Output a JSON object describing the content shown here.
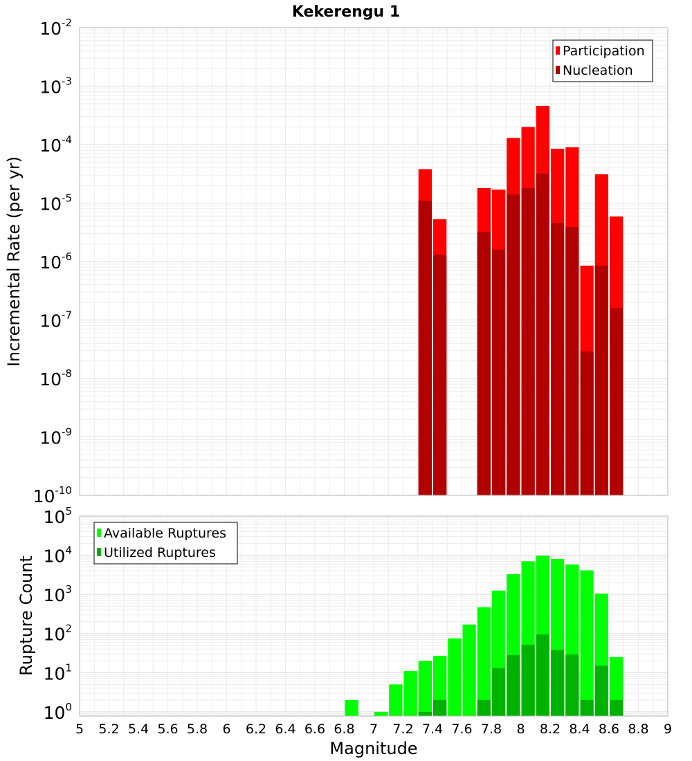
{
  "chart_data": [
    {
      "type": "bar",
      "title": "Kekerengu 1",
      "xlabel": "",
      "ylabel": "Incremental Rate (per yr)",
      "yscale": "log",
      "ylim": [
        1e-10,
        0.01
      ],
      "xlim": [
        5,
        9
      ],
      "bar_width": 0.1,
      "grid": true,
      "legend_position": "top-right",
      "y_tick_labels": [
        {
          "base": "10",
          "exp": "-2",
          "value": 0.01
        },
        {
          "base": "10",
          "exp": "-3",
          "value": 0.001
        },
        {
          "base": "10",
          "exp": "-4",
          "value": 0.0001
        },
        {
          "base": "10",
          "exp": "-5",
          "value": 1e-05
        },
        {
          "base": "10",
          "exp": "-6",
          "value": 1e-06
        },
        {
          "base": "10",
          "exp": "-7",
          "value": 1e-07
        },
        {
          "base": "10",
          "exp": "-8",
          "value": 1e-08
        },
        {
          "base": "10",
          "exp": "-9",
          "value": 1e-09
        },
        {
          "base": "10",
          "exp": "-10",
          "value": 1e-10
        }
      ],
      "series": [
        {
          "name": "Participation",
          "color": "#ff0000",
          "points": [
            {
              "x": 7.35,
              "y": 3.8e-05
            },
            {
              "x": 7.45,
              "y": 5.3e-06
            },
            {
              "x": 7.75,
              "y": 1.8e-05
            },
            {
              "x": 7.85,
              "y": 1.7e-05
            },
            {
              "x": 7.95,
              "y": 0.00013
            },
            {
              "x": 8.05,
              "y": 0.0002
            },
            {
              "x": 8.15,
              "y": 0.00046
            },
            {
              "x": 8.25,
              "y": 8.5e-05
            },
            {
              "x": 8.35,
              "y": 9e-05
            },
            {
              "x": 8.45,
              "y": 8.5e-07
            },
            {
              "x": 8.55,
              "y": 3.1e-05
            },
            {
              "x": 8.65,
              "y": 5.9e-06
            }
          ]
        },
        {
          "name": "Nucleation",
          "color": "#b20000",
          "points": [
            {
              "x": 7.35,
              "y": 1.1e-05
            },
            {
              "x": 7.45,
              "y": 1.3e-06
            },
            {
              "x": 7.75,
              "y": 3.2e-06
            },
            {
              "x": 7.85,
              "y": 1.6e-06
            },
            {
              "x": 7.95,
              "y": 1.4e-05
            },
            {
              "x": 8.05,
              "y": 1.8e-05
            },
            {
              "x": 8.15,
              "y": 3.2e-05
            },
            {
              "x": 8.25,
              "y": 4.6e-06
            },
            {
              "x": 8.35,
              "y": 3.9e-06
            },
            {
              "x": 8.45,
              "y": 2.9e-08
            },
            {
              "x": 8.55,
              "y": 8.5e-07
            },
            {
              "x": 8.65,
              "y": 1.6e-07
            }
          ]
        }
      ]
    },
    {
      "type": "bar",
      "title": "",
      "xlabel": "Magnitude",
      "ylabel": "Rupture Count",
      "yscale": "log",
      "ylim": [
        0.78,
        100000
      ],
      "xlim": [
        5,
        9
      ],
      "bar_width": 0.1,
      "grid": true,
      "legend_position": "top-left",
      "x_tick_labels": [
        "5",
        "5.2",
        "5.4",
        "5.6",
        "5.8",
        "6",
        "6.2",
        "6.4",
        "6.6",
        "6.8",
        "7",
        "7.2",
        "7.4",
        "7.6",
        "7.8",
        "8",
        "8.2",
        "8.4",
        "8.6",
        "8.8",
        "9"
      ],
      "y_tick_labels": [
        {
          "base": "10",
          "exp": "5",
          "value": 100000
        },
        {
          "base": "10",
          "exp": "4",
          "value": 10000
        },
        {
          "base": "10",
          "exp": "3",
          "value": 1000
        },
        {
          "base": "10",
          "exp": "2",
          "value": 100
        },
        {
          "base": "10",
          "exp": "1",
          "value": 10
        },
        {
          "base": "10",
          "exp": "0",
          "value": 1
        }
      ],
      "series": [
        {
          "name": "Available Ruptures",
          "color": "#00ff00",
          "points": [
            {
              "x": 6.85,
              "y": 2
            },
            {
              "x": 7.05,
              "y": 1
            },
            {
              "x": 7.15,
              "y": 5
            },
            {
              "x": 7.25,
              "y": 11
            },
            {
              "x": 7.35,
              "y": 20
            },
            {
              "x": 7.45,
              "y": 27
            },
            {
              "x": 7.55,
              "y": 75
            },
            {
              "x": 7.65,
              "y": 170
            },
            {
              "x": 7.75,
              "y": 470
            },
            {
              "x": 7.85,
              "y": 1250
            },
            {
              "x": 7.95,
              "y": 3300
            },
            {
              "x": 8.05,
              "y": 7000
            },
            {
              "x": 8.15,
              "y": 9700
            },
            {
              "x": 8.25,
              "y": 8000
            },
            {
              "x": 8.35,
              "y": 5800
            },
            {
              "x": 8.45,
              "y": 4100
            },
            {
              "x": 8.55,
              "y": 1050
            },
            {
              "x": 8.65,
              "y": 25
            }
          ]
        },
        {
          "name": "Utilized Ruptures",
          "color": "#00b200",
          "points": [
            {
              "x": 7.35,
              "y": 1
            },
            {
              "x": 7.45,
              "y": 2
            },
            {
              "x": 7.75,
              "y": 2
            },
            {
              "x": 7.85,
              "y": 13
            },
            {
              "x": 7.95,
              "y": 28
            },
            {
              "x": 8.05,
              "y": 52
            },
            {
              "x": 8.15,
              "y": 95
            },
            {
              "x": 8.25,
              "y": 38
            },
            {
              "x": 8.35,
              "y": 29
            },
            {
              "x": 8.45,
              "y": 2
            },
            {
              "x": 8.55,
              "y": 15
            },
            {
              "x": 8.65,
              "y": 2
            }
          ]
        }
      ]
    }
  ]
}
